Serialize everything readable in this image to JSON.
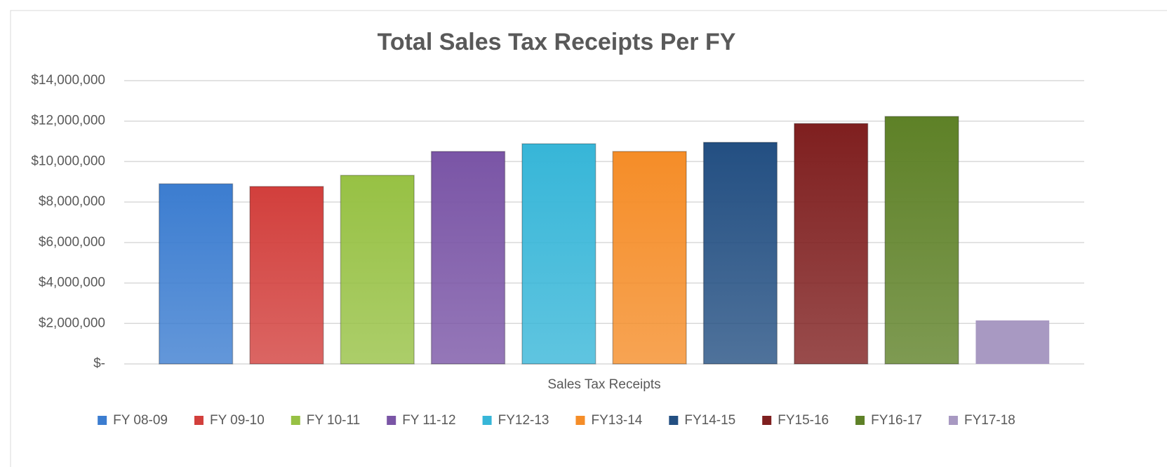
{
  "chart_data": {
    "type": "bar",
    "title": "Total Sales Tax Receipts Per FY",
    "categories": [
      "Sales Tax Receipts"
    ],
    "series": [
      {
        "name": "FY 08-09",
        "color": "#3c7dd0",
        "values": [
          8900000
        ]
      },
      {
        "name": "FY 09-10",
        "color": "#d23f3c",
        "values": [
          8770000
        ]
      },
      {
        "name": "FY 10-11",
        "color": "#97c144",
        "values": [
          9320000
        ]
      },
      {
        "name": "FY 11-12",
        "color": "#7a55a6",
        "values": [
          10500000
        ]
      },
      {
        "name": "FY12-13",
        "color": "#37b6d8",
        "values": [
          10880000
        ]
      },
      {
        "name": "FY13-14",
        "color": "#f58d28",
        "values": [
          10500000
        ]
      },
      {
        "name": "FY14-15",
        "color": "#234f82",
        "values": [
          10950000
        ]
      },
      {
        "name": "FY15-16",
        "color": "#7f1f1f",
        "values": [
          11880000
        ]
      },
      {
        "name": "FY16-17",
        "color": "#5e8127",
        "values": [
          12230000
        ]
      },
      {
        "name": "FY17-18",
        "color": "#a899c2",
        "values": [
          2150000
        ]
      }
    ],
    "ylim": [
      0,
      14000000
    ],
    "yticks": [
      {
        "value": 0,
        "label": "$-"
      },
      {
        "value": 2000000,
        "label": "$2,000,000"
      },
      {
        "value": 4000000,
        "label": "$4,000,000"
      },
      {
        "value": 6000000,
        "label": "$6,000,000"
      },
      {
        "value": 8000000,
        "label": "$8,000,000"
      },
      {
        "value": 10000000,
        "label": "$10,000,000"
      },
      {
        "value": 12000000,
        "label": "$12,000,000"
      },
      {
        "value": 14000000,
        "label": "$14,000,000"
      }
    ],
    "grid": true,
    "legend": "bottom"
  }
}
